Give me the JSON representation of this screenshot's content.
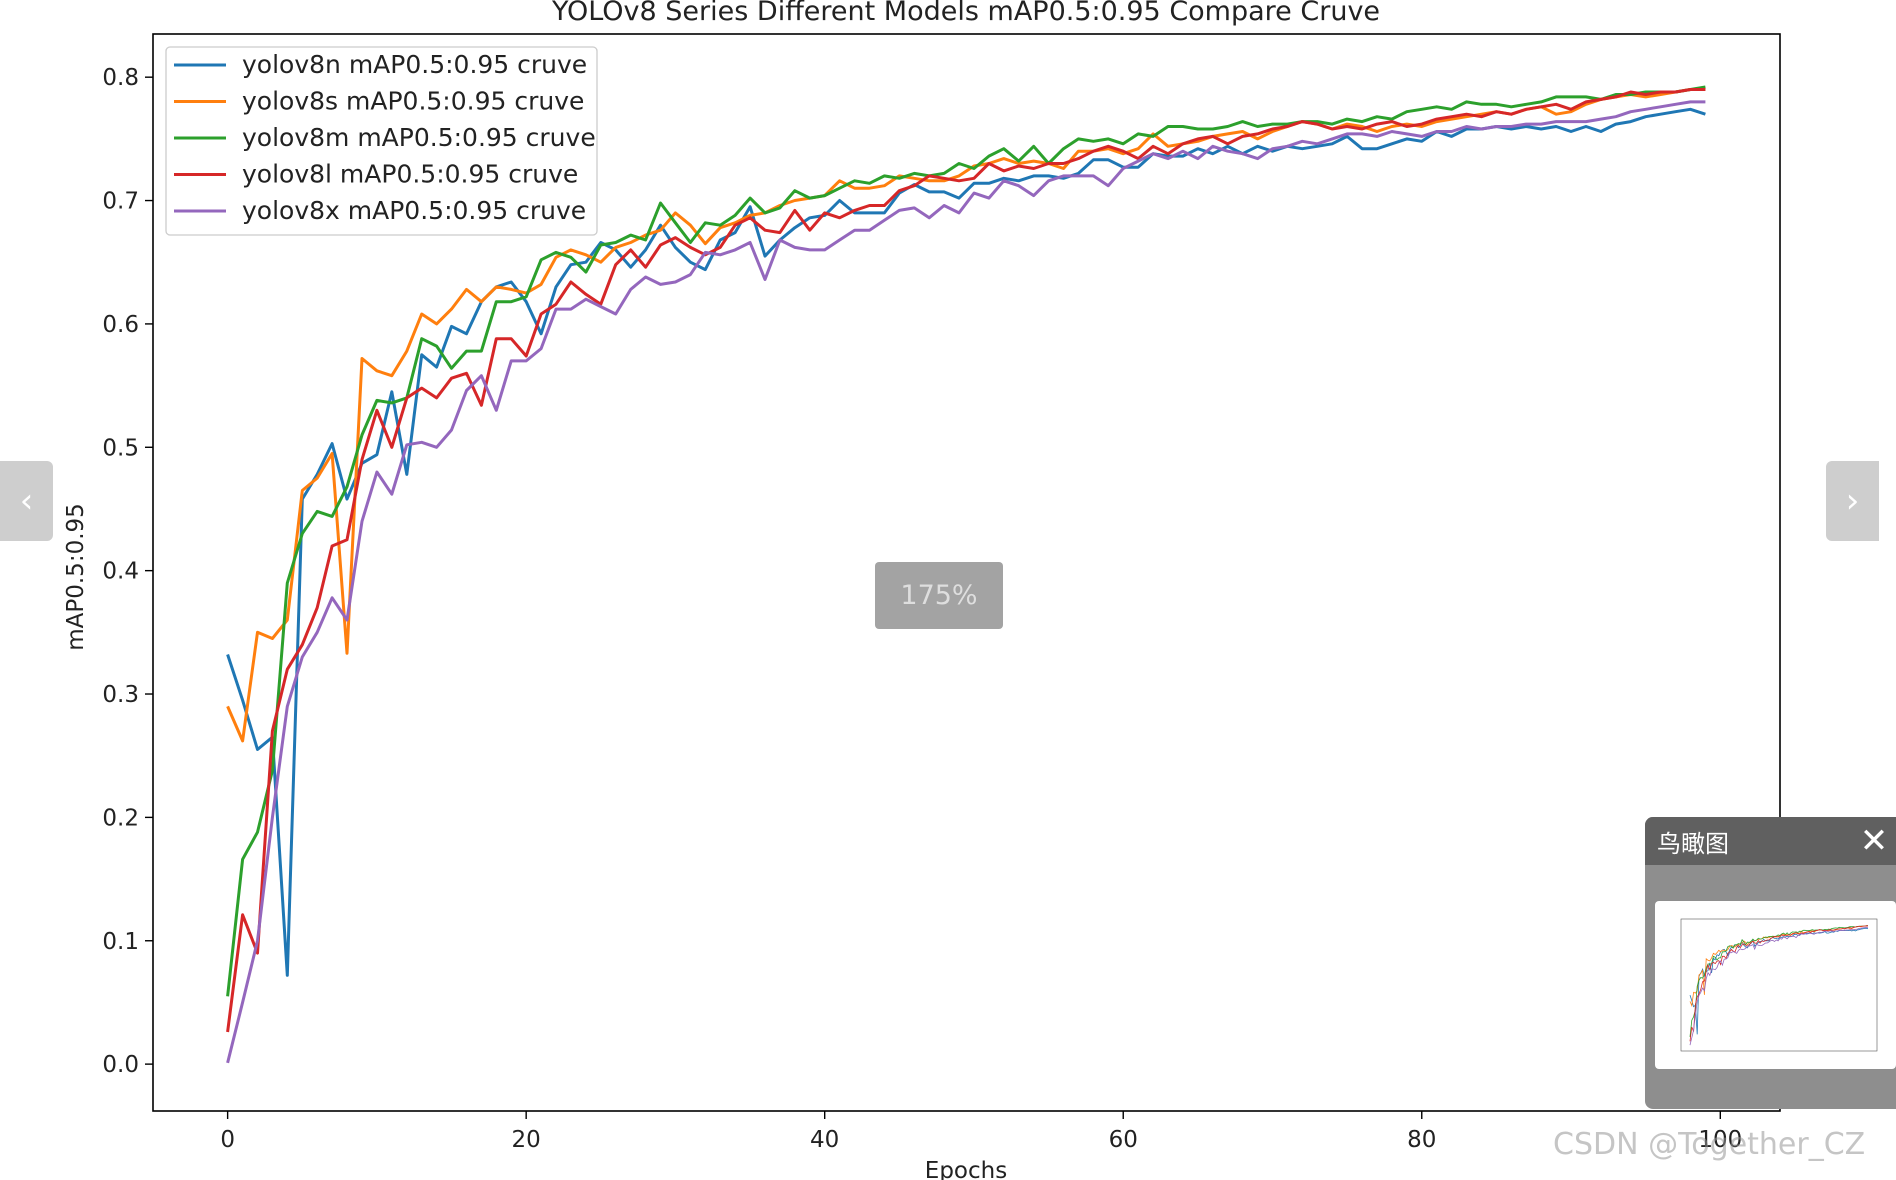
{
  "zoom_label": "175%",
  "birdseye": {
    "title": "鸟瞰图",
    "close_icon": "close-icon"
  },
  "watermark": "CSDN @Together_CZ",
  "nav": {
    "prev_icon": "chevron-left-icon",
    "next_icon": "chevron-right-icon"
  },
  "chart_data": {
    "type": "line",
    "title": "YOLOv8 Series Different Models mAP0.5:0.95 Compare Cruve",
    "xlabel": "Epochs",
    "ylabel": "mAP0.5:0.95",
    "xlim": [
      -5,
      104
    ],
    "ylim": [
      -0.038,
      0.835
    ],
    "xticks": [
      0,
      20,
      40,
      60,
      80,
      100
    ],
    "yticks": [
      0.0,
      0.1,
      0.2,
      0.3,
      0.4,
      0.5,
      0.6,
      0.7,
      0.8
    ],
    "grid": false,
    "legend_position": "top-left",
    "series": [
      {
        "name": "yolov8n mAP0.5:0.95 cruve",
        "color": "#1f77b4",
        "values": [
          0.332,
          0.295,
          0.255,
          0.265,
          0.072,
          0.458,
          0.478,
          0.503,
          0.458,
          0.487,
          0.494,
          0.545,
          0.478,
          0.575,
          0.565,
          0.598,
          0.592,
          0.618,
          0.63,
          0.634,
          0.618,
          0.592,
          0.63,
          0.648,
          0.65,
          0.666,
          0.66,
          0.646,
          0.66,
          0.68,
          0.662,
          0.65,
          0.644,
          0.668,
          0.674,
          0.695,
          0.655,
          0.668,
          0.678,
          0.686,
          0.688,
          0.7,
          0.69,
          0.69,
          0.69,
          0.706,
          0.713,
          0.707,
          0.707,
          0.702,
          0.714,
          0.714,
          0.718,
          0.716,
          0.72,
          0.72,
          0.718,
          0.722,
          0.733,
          0.733,
          0.727,
          0.727,
          0.738,
          0.736,
          0.736,
          0.742,
          0.738,
          0.744,
          0.738,
          0.744,
          0.74,
          0.744,
          0.742,
          0.744,
          0.746,
          0.752,
          0.742,
          0.742,
          0.746,
          0.75,
          0.748,
          0.756,
          0.752,
          0.758,
          0.758,
          0.76,
          0.758,
          0.76,
          0.758,
          0.76,
          0.756,
          0.76,
          0.756,
          0.762,
          0.764,
          0.768,
          0.77,
          0.772,
          0.774,
          0.77
        ]
      },
      {
        "name": "yolov8s mAP0.5:0.95 cruve",
        "color": "#ff7f0e",
        "values": [
          0.29,
          0.262,
          0.35,
          0.345,
          0.36,
          0.465,
          0.475,
          0.495,
          0.333,
          0.572,
          0.562,
          0.558,
          0.578,
          0.608,
          0.6,
          0.612,
          0.628,
          0.618,
          0.63,
          0.628,
          0.625,
          0.632,
          0.654,
          0.66,
          0.656,
          0.65,
          0.662,
          0.666,
          0.672,
          0.676,
          0.69,
          0.68,
          0.665,
          0.678,
          0.682,
          0.688,
          0.69,
          0.696,
          0.7,
          0.702,
          0.704,
          0.716,
          0.71,
          0.71,
          0.712,
          0.72,
          0.718,
          0.716,
          0.716,
          0.72,
          0.728,
          0.73,
          0.734,
          0.73,
          0.732,
          0.73,
          0.726,
          0.74,
          0.74,
          0.742,
          0.738,
          0.742,
          0.754,
          0.744,
          0.746,
          0.748,
          0.752,
          0.754,
          0.756,
          0.75,
          0.756,
          0.76,
          0.764,
          0.762,
          0.758,
          0.762,
          0.76,
          0.756,
          0.76,
          0.762,
          0.76,
          0.764,
          0.766,
          0.768,
          0.77,
          0.772,
          0.77,
          0.774,
          0.776,
          0.77,
          0.772,
          0.778,
          0.782,
          0.784,
          0.786,
          0.784,
          0.786,
          0.788,
          0.79,
          0.79
        ]
      },
      {
        "name": "yolov8m mAP0.5:0.95 cruve",
        "color": "#2ca02c",
        "values": [
          0.055,
          0.166,
          0.188,
          0.238,
          0.39,
          0.43,
          0.448,
          0.444,
          0.468,
          0.51,
          0.538,
          0.536,
          0.54,
          0.588,
          0.582,
          0.564,
          0.578,
          0.578,
          0.618,
          0.618,
          0.622,
          0.652,
          0.658,
          0.654,
          0.642,
          0.664,
          0.666,
          0.672,
          0.668,
          0.698,
          0.682,
          0.666,
          0.682,
          0.68,
          0.688,
          0.702,
          0.69,
          0.694,
          0.708,
          0.702,
          0.704,
          0.71,
          0.716,
          0.714,
          0.72,
          0.718,
          0.722,
          0.72,
          0.722,
          0.73,
          0.726,
          0.736,
          0.742,
          0.732,
          0.744,
          0.73,
          0.742,
          0.75,
          0.748,
          0.75,
          0.746,
          0.754,
          0.752,
          0.76,
          0.76,
          0.758,
          0.758,
          0.76,
          0.764,
          0.76,
          0.762,
          0.762,
          0.764,
          0.764,
          0.762,
          0.766,
          0.764,
          0.768,
          0.766,
          0.772,
          0.774,
          0.776,
          0.774,
          0.78,
          0.778,
          0.778,
          0.776,
          0.778,
          0.78,
          0.784,
          0.784,
          0.784,
          0.782,
          0.786,
          0.786,
          0.788,
          0.788,
          0.788,
          0.79,
          0.792
        ]
      },
      {
        "name": "yolov8l mAP0.5:0.95 cruve",
        "color": "#d62728",
        "values": [
          0.026,
          0.121,
          0.09,
          0.27,
          0.32,
          0.34,
          0.37,
          0.42,
          0.425,
          0.49,
          0.53,
          0.5,
          0.54,
          0.548,
          0.54,
          0.556,
          0.56,
          0.534,
          0.588,
          0.588,
          0.574,
          0.608,
          0.616,
          0.634,
          0.624,
          0.616,
          0.648,
          0.66,
          0.646,
          0.664,
          0.67,
          0.662,
          0.656,
          0.662,
          0.68,
          0.686,
          0.676,
          0.674,
          0.692,
          0.676,
          0.69,
          0.686,
          0.692,
          0.696,
          0.696,
          0.708,
          0.712,
          0.72,
          0.718,
          0.716,
          0.718,
          0.73,
          0.724,
          0.728,
          0.726,
          0.73,
          0.73,
          0.734,
          0.74,
          0.744,
          0.74,
          0.734,
          0.744,
          0.738,
          0.746,
          0.75,
          0.752,
          0.746,
          0.752,
          0.754,
          0.758,
          0.76,
          0.764,
          0.762,
          0.758,
          0.76,
          0.758,
          0.762,
          0.764,
          0.76,
          0.762,
          0.766,
          0.768,
          0.77,
          0.768,
          0.772,
          0.77,
          0.774,
          0.776,
          0.778,
          0.774,
          0.78,
          0.782,
          0.784,
          0.788,
          0.786,
          0.788,
          0.788,
          0.79,
          0.79
        ]
      },
      {
        "name": "yolov8x mAP0.5:0.95 cruve",
        "color": "#9467bd",
        "values": [
          0.001,
          0.05,
          0.1,
          0.2,
          0.29,
          0.33,
          0.35,
          0.378,
          0.36,
          0.44,
          0.48,
          0.462,
          0.502,
          0.504,
          0.5,
          0.514,
          0.546,
          0.558,
          0.53,
          0.57,
          0.57,
          0.58,
          0.612,
          0.612,
          0.62,
          0.614,
          0.608,
          0.628,
          0.638,
          0.632,
          0.634,
          0.64,
          0.658,
          0.656,
          0.66,
          0.666,
          0.636,
          0.668,
          0.662,
          0.66,
          0.66,
          0.668,
          0.676,
          0.676,
          0.684,
          0.692,
          0.694,
          0.686,
          0.696,
          0.69,
          0.706,
          0.702,
          0.716,
          0.712,
          0.704,
          0.716,
          0.72,
          0.72,
          0.72,
          0.712,
          0.726,
          0.732,
          0.738,
          0.734,
          0.74,
          0.734,
          0.744,
          0.74,
          0.738,
          0.734,
          0.742,
          0.744,
          0.748,
          0.746,
          0.75,
          0.754,
          0.754,
          0.752,
          0.756,
          0.754,
          0.752,
          0.756,
          0.756,
          0.76,
          0.758,
          0.76,
          0.76,
          0.762,
          0.762,
          0.764,
          0.764,
          0.764,
          0.766,
          0.768,
          0.772,
          0.774,
          0.776,
          0.778,
          0.78,
          0.78
        ]
      }
    ]
  }
}
